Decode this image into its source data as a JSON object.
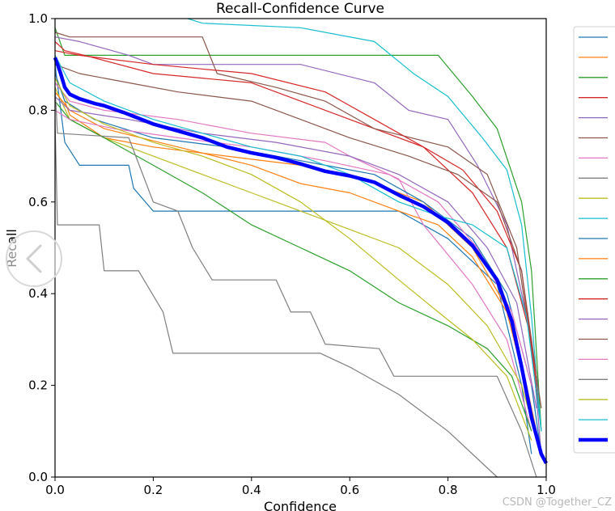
{
  "chart_data": {
    "type": "line",
    "title": "Recall-Confidence Curve",
    "xlabel": "Confidence",
    "ylabel": "Recall",
    "xlim": [
      0.0,
      1.0
    ],
    "ylim": [
      0.0,
      1.0
    ],
    "x_ticks": [
      "0.0",
      "0.2",
      "0.4",
      "0.6",
      "0.8",
      "1.0"
    ],
    "y_ticks": [
      "0.0",
      "0.2",
      "0.4",
      "0.6",
      "0.8",
      "1.0"
    ],
    "grid": false,
    "legend_position": "right",
    "series": [
      {
        "name": "",
        "color": "#1f77b4",
        "points": [
          [
            0,
            0.9
          ],
          [
            0.02,
            0.73
          ],
          [
            0.05,
            0.68
          ],
          [
            0.15,
            0.68
          ],
          [
            0.16,
            0.63
          ],
          [
            0.2,
            0.58
          ],
          [
            0.7,
            0.58
          ],
          [
            0.8,
            0.52
          ],
          [
            0.9,
            0.42
          ],
          [
            0.95,
            0.2
          ],
          [
            0.97,
            0.05
          ]
        ]
      },
      {
        "name": "",
        "color": "#ff7f0e",
        "points": [
          [
            0,
            0.88
          ],
          [
            0.03,
            0.79
          ],
          [
            0.1,
            0.74
          ],
          [
            0.2,
            0.72
          ],
          [
            0.35,
            0.7
          ],
          [
            0.5,
            0.68
          ],
          [
            0.6,
            0.66
          ],
          [
            0.75,
            0.6
          ],
          [
            0.85,
            0.5
          ],
          [
            0.93,
            0.35
          ],
          [
            0.98,
            0.1
          ]
        ]
      },
      {
        "name": "",
        "color": "#2ca02c",
        "points": [
          [
            0,
            0.98
          ],
          [
            0.02,
            0.92
          ],
          [
            0.5,
            0.92
          ],
          [
            0.78,
            0.92
          ],
          [
            0.85,
            0.83
          ],
          [
            0.9,
            0.76
          ],
          [
            0.95,
            0.6
          ],
          [
            0.97,
            0.45
          ],
          [
            0.99,
            0.1
          ]
        ]
      },
      {
        "name": "",
        "color": "#d62728",
        "points": [
          [
            0,
            0.95
          ],
          [
            0.02,
            0.93
          ],
          [
            0.06,
            0.92
          ],
          [
            0.2,
            0.88
          ],
          [
            0.4,
            0.86
          ],
          [
            0.6,
            0.78
          ],
          [
            0.75,
            0.72
          ],
          [
            0.85,
            0.62
          ],
          [
            0.92,
            0.5
          ],
          [
            0.97,
            0.3
          ],
          [
            0.99,
            0.1
          ]
        ]
      },
      {
        "name": "",
        "color": "#9467bd",
        "points": [
          [
            0,
            0.96
          ],
          [
            0.05,
            0.95
          ],
          [
            0.15,
            0.92
          ],
          [
            0.2,
            0.9
          ],
          [
            0.5,
            0.9
          ],
          [
            0.65,
            0.86
          ],
          [
            0.72,
            0.8
          ],
          [
            0.8,
            0.78
          ],
          [
            0.86,
            0.68
          ],
          [
            0.92,
            0.55
          ],
          [
            0.97,
            0.3
          ],
          [
            0.99,
            0.05
          ]
        ]
      },
      {
        "name": "",
        "color": "#8c564b",
        "points": [
          [
            0,
            0.97
          ],
          [
            0.03,
            0.96
          ],
          [
            0.3,
            0.96
          ],
          [
            0.33,
            0.88
          ],
          [
            0.45,
            0.85
          ],
          [
            0.55,
            0.82
          ],
          [
            0.65,
            0.76
          ],
          [
            0.8,
            0.72
          ],
          [
            0.88,
            0.66
          ],
          [
            0.94,
            0.5
          ],
          [
            0.98,
            0.2
          ]
        ]
      },
      {
        "name": "",
        "color": "#e377c2",
        "points": [
          [
            0,
            0.86
          ],
          [
            0.03,
            0.82
          ],
          [
            0.1,
            0.8
          ],
          [
            0.25,
            0.78
          ],
          [
            0.4,
            0.75
          ],
          [
            0.55,
            0.73
          ],
          [
            0.6,
            0.7
          ],
          [
            0.7,
            0.65
          ],
          [
            0.75,
            0.55
          ],
          [
            0.85,
            0.42
          ],
          [
            0.92,
            0.3
          ],
          [
            0.97,
            0.1
          ]
        ]
      },
      {
        "name": "",
        "color": "#7f7f7f",
        "points": [
          [
            0,
            0.78
          ],
          [
            0.005,
            0.55
          ],
          [
            0.09,
            0.55
          ],
          [
            0.1,
            0.45
          ],
          [
            0.17,
            0.45
          ],
          [
            0.22,
            0.36
          ],
          [
            0.24,
            0.27
          ],
          [
            0.54,
            0.27
          ],
          [
            0.6,
            0.24
          ],
          [
            0.7,
            0.18
          ],
          [
            0.8,
            0.1
          ],
          [
            0.9,
            0.0
          ]
        ]
      },
      {
        "name": "",
        "color": "#bcbd22",
        "points": [
          [
            0,
            0.85
          ],
          [
            0.03,
            0.78
          ],
          [
            0.1,
            0.74
          ],
          [
            0.2,
            0.7
          ],
          [
            0.3,
            0.66
          ],
          [
            0.4,
            0.62
          ],
          [
            0.5,
            0.58
          ],
          [
            0.6,
            0.54
          ],
          [
            0.7,
            0.5
          ],
          [
            0.8,
            0.42
          ],
          [
            0.88,
            0.33
          ],
          [
            0.95,
            0.2
          ],
          [
            0.99,
            0.05
          ]
        ]
      },
      {
        "name": "",
        "color": "#17becf",
        "points": [
          [
            0.27,
            1.0
          ],
          [
            0.3,
            0.99
          ],
          [
            0.5,
            0.98
          ],
          [
            0.65,
            0.95
          ],
          [
            0.73,
            0.88
          ],
          [
            0.8,
            0.83
          ],
          [
            0.87,
            0.74
          ],
          [
            0.92,
            0.67
          ],
          [
            0.95,
            0.55
          ],
          [
            0.97,
            0.35
          ],
          [
            0.99,
            0.1
          ]
        ]
      },
      {
        "name": "",
        "color": "#1f77b4",
        "points": [
          [
            0,
            0.88
          ],
          [
            0.02,
            0.82
          ],
          [
            0.08,
            0.78
          ],
          [
            0.2,
            0.74
          ],
          [
            0.35,
            0.72
          ],
          [
            0.45,
            0.7
          ],
          [
            0.55,
            0.68
          ],
          [
            0.65,
            0.66
          ],
          [
            0.75,
            0.6
          ],
          [
            0.85,
            0.52
          ],
          [
            0.92,
            0.4
          ],
          [
            0.97,
            0.2
          ],
          [
            0.99,
            0.05
          ]
        ]
      },
      {
        "name": "",
        "color": "#ff7f0e",
        "points": [
          [
            0,
            0.84
          ],
          [
            0.03,
            0.8
          ],
          [
            0.1,
            0.76
          ],
          [
            0.25,
            0.72
          ],
          [
            0.4,
            0.68
          ],
          [
            0.5,
            0.64
          ],
          [
            0.6,
            0.62
          ],
          [
            0.7,
            0.58
          ],
          [
            0.78,
            0.55
          ],
          [
            0.85,
            0.48
          ],
          [
            0.92,
            0.36
          ],
          [
            0.97,
            0.15
          ]
        ]
      },
      {
        "name": "",
        "color": "#2ca02c",
        "points": [
          [
            0,
            0.82
          ],
          [
            0.03,
            0.78
          ],
          [
            0.1,
            0.74
          ],
          [
            0.2,
            0.68
          ],
          [
            0.3,
            0.62
          ],
          [
            0.4,
            0.55
          ],
          [
            0.5,
            0.5
          ],
          [
            0.6,
            0.45
          ],
          [
            0.7,
            0.38
          ],
          [
            0.8,
            0.33
          ],
          [
            0.88,
            0.28
          ],
          [
            0.93,
            0.22
          ],
          [
            0.97,
            0.1
          ]
        ]
      },
      {
        "name": "",
        "color": "#d62728",
        "points": [
          [
            0,
            0.93
          ],
          [
            0.05,
            0.92
          ],
          [
            0.2,
            0.9
          ],
          [
            0.4,
            0.88
          ],
          [
            0.55,
            0.84
          ],
          [
            0.65,
            0.78
          ],
          [
            0.75,
            0.72
          ],
          [
            0.83,
            0.67
          ],
          [
            0.9,
            0.58
          ],
          [
            0.95,
            0.45
          ],
          [
            0.98,
            0.2
          ]
        ]
      },
      {
        "name": "",
        "color": "#9467bd",
        "points": [
          [
            0,
            0.83
          ],
          [
            0.03,
            0.8
          ],
          [
            0.15,
            0.78
          ],
          [
            0.3,
            0.75
          ],
          [
            0.45,
            0.73
          ],
          [
            0.6,
            0.7
          ],
          [
            0.7,
            0.66
          ],
          [
            0.8,
            0.6
          ],
          [
            0.88,
            0.5
          ],
          [
            0.94,
            0.38
          ],
          [
            0.98,
            0.15
          ]
        ]
      },
      {
        "name": "",
        "color": "#8c564b",
        "points": [
          [
            0,
            0.9
          ],
          [
            0.05,
            0.88
          ],
          [
            0.15,
            0.86
          ],
          [
            0.25,
            0.84
          ],
          [
            0.4,
            0.82
          ],
          [
            0.5,
            0.78
          ],
          [
            0.6,
            0.74
          ],
          [
            0.72,
            0.7
          ],
          [
            0.82,
            0.66
          ],
          [
            0.9,
            0.6
          ],
          [
            0.95,
            0.45
          ],
          [
            0.99,
            0.15
          ]
        ]
      },
      {
        "name": "",
        "color": "#e377c2",
        "points": [
          [
            0,
            0.8
          ],
          [
            0.03,
            0.78
          ],
          [
            0.12,
            0.76
          ],
          [
            0.25,
            0.74
          ],
          [
            0.4,
            0.72
          ],
          [
            0.55,
            0.69
          ],
          [
            0.68,
            0.66
          ],
          [
            0.78,
            0.6
          ],
          [
            0.86,
            0.5
          ],
          [
            0.93,
            0.36
          ],
          [
            0.97,
            0.2
          ]
        ]
      },
      {
        "name": "",
        "color": "#7f7f7f",
        "points": [
          [
            0,
            0.85
          ],
          [
            0.005,
            0.75
          ],
          [
            0.15,
            0.74
          ],
          [
            0.2,
            0.6
          ],
          [
            0.25,
            0.58
          ],
          [
            0.28,
            0.5
          ],
          [
            0.32,
            0.43
          ],
          [
            0.45,
            0.43
          ],
          [
            0.48,
            0.36
          ],
          [
            0.52,
            0.36
          ],
          [
            0.55,
            0.29
          ],
          [
            0.66,
            0.28
          ],
          [
            0.69,
            0.22
          ],
          [
            0.8,
            0.22
          ],
          [
            0.9,
            0.22
          ],
          [
            0.95,
            0.1
          ],
          [
            0.98,
            0.0
          ]
        ]
      },
      {
        "name": "",
        "color": "#bcbd22",
        "points": [
          [
            0,
            0.87
          ],
          [
            0.03,
            0.81
          ],
          [
            0.1,
            0.77
          ],
          [
            0.2,
            0.73
          ],
          [
            0.3,
            0.7
          ],
          [
            0.4,
            0.66
          ],
          [
            0.5,
            0.6
          ],
          [
            0.6,
            0.52
          ],
          [
            0.7,
            0.43
          ],
          [
            0.78,
            0.36
          ],
          [
            0.85,
            0.3
          ],
          [
            0.92,
            0.22
          ],
          [
            0.97,
            0.08
          ]
        ]
      },
      {
        "name": "",
        "color": "#17becf",
        "points": [
          [
            0,
            0.92
          ],
          [
            0.03,
            0.86
          ],
          [
            0.1,
            0.82
          ],
          [
            0.2,
            0.78
          ],
          [
            0.3,
            0.75
          ],
          [
            0.4,
            0.72
          ],
          [
            0.5,
            0.7
          ],
          [
            0.6,
            0.66
          ],
          [
            0.7,
            0.6
          ],
          [
            0.78,
            0.57
          ],
          [
            0.85,
            0.55
          ],
          [
            0.92,
            0.5
          ],
          [
            0.96,
            0.35
          ],
          [
            0.99,
            0.1
          ]
        ]
      },
      {
        "name": "",
        "color": "#0000ff",
        "bold": true,
        "points": [
          [
            0,
            0.915
          ],
          [
            0.01,
            0.885
          ],
          [
            0.02,
            0.85
          ],
          [
            0.03,
            0.835
          ],
          [
            0.05,
            0.825
          ],
          [
            0.08,
            0.815
          ],
          [
            0.1,
            0.81
          ],
          [
            0.14,
            0.795
          ],
          [
            0.2,
            0.77
          ],
          [
            0.25,
            0.755
          ],
          [
            0.3,
            0.74
          ],
          [
            0.35,
            0.72
          ],
          [
            0.4,
            0.707
          ],
          [
            0.45,
            0.697
          ],
          [
            0.5,
            0.683
          ],
          [
            0.55,
            0.667
          ],
          [
            0.6,
            0.657
          ],
          [
            0.65,
            0.643
          ],
          [
            0.7,
            0.615
          ],
          [
            0.75,
            0.59
          ],
          [
            0.8,
            0.555
          ],
          [
            0.85,
            0.505
          ],
          [
            0.9,
            0.43
          ],
          [
            0.93,
            0.34
          ],
          [
            0.95,
            0.24
          ],
          [
            0.97,
            0.13
          ],
          [
            0.99,
            0.05
          ],
          [
            1.0,
            0.03
          ]
        ]
      }
    ]
  },
  "watermark": "CSDN @Together_CZ"
}
